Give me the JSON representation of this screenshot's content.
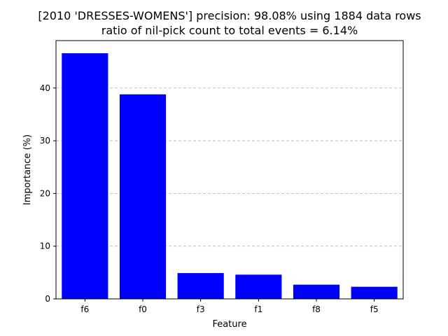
{
  "chart_data": {
    "type": "bar",
    "title": "[2010 'DRESSES-WOMENS'] precision: 98.08% using 1884 data rows",
    "subtitle": "ratio of nil-pick count to total events = 6.14%",
    "xlabel": "Feature",
    "ylabel": "Importance (%)",
    "categories": [
      "f6",
      "f0",
      "f3",
      "f1",
      "f8",
      "f5"
    ],
    "values": [
      46.6,
      38.8,
      4.9,
      4.6,
      2.7,
      2.3
    ],
    "ylim": [
      0,
      49
    ],
    "yticks": [
      0,
      10,
      20,
      30,
      40
    ],
    "grid": "y-dashed",
    "legend": "none",
    "colors": {
      "bar": "#0000ff",
      "grid": "#b0b0b0",
      "axis": "#000000",
      "background": "#ffffff"
    }
  }
}
